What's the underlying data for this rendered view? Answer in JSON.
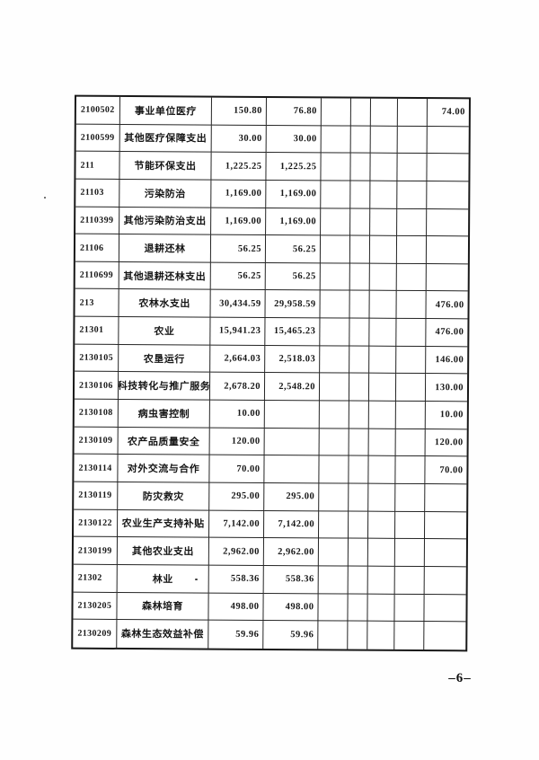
{
  "document": {
    "page_number": "–6–"
  },
  "table": {
    "rows": [
      [
        "2100502",
        "事业单位医疗",
        "150.80",
        "76.80",
        "",
        "",
        "",
        "",
        "74.00"
      ],
      [
        "2100599",
        "其他医疗保障支出",
        "30.00",
        "30.00",
        "",
        "",
        "",
        "",
        ""
      ],
      [
        "211",
        "节能环保支出",
        "1,225.25",
        "1,225.25",
        "",
        "",
        "",
        "",
        ""
      ],
      [
        "21103",
        "污染防治",
        "1,169.00",
        "1,169.00",
        "",
        "",
        "",
        "",
        ""
      ],
      [
        "2110399",
        "其他污染防治支出",
        "1,169.00",
        "1,169.00",
        "",
        "",
        "",
        "",
        ""
      ],
      [
        "21106",
        "退耕还林",
        "56.25",
        "56.25",
        "",
        "",
        "",
        "",
        ""
      ],
      [
        "2110699",
        "其他退耕还林支出",
        "56.25",
        "56.25",
        "",
        "",
        "",
        "",
        ""
      ],
      [
        "213",
        "农林水支出",
        "30,434.59",
        "29,958.59",
        "",
        "",
        "",
        "",
        "476.00"
      ],
      [
        "21301",
        "农业",
        "15,941.23",
        "15,465.23",
        "",
        "",
        "",
        "",
        "476.00"
      ],
      [
        "2130105",
        "农垦运行",
        "2,664.03",
        "2,518.03",
        "",
        "",
        "",
        "",
        "146.00"
      ],
      [
        "2130106",
        "科技转化与推广服务",
        "2,678.20",
        "2,548.20",
        "",
        "",
        "",
        "",
        "130.00"
      ],
      [
        "2130108",
        "病虫害控制",
        "10.00",
        "",
        "",
        "",
        "",
        "",
        "10.00"
      ],
      [
        "2130109",
        "农产品质量安全",
        "120.00",
        "",
        "",
        "",
        "",
        "",
        "120.00"
      ],
      [
        "2130114",
        "对外交流与合作",
        "70.00",
        "",
        "",
        "",
        "",
        "",
        "70.00"
      ],
      [
        "2130119",
        "防灾救灾",
        "295.00",
        "295.00",
        "",
        "",
        "",
        "",
        ""
      ],
      [
        "2130122",
        "农业生产支持补贴",
        "7,142.00",
        "7,142.00",
        "",
        "",
        "",
        "",
        ""
      ],
      [
        "2130199",
        "其他农业支出",
        "2,962.00",
        "2,962.00",
        "",
        "",
        "",
        "",
        ""
      ],
      [
        "21302",
        "林业",
        "558.36",
        "558.36",
        "",
        "",
        "",
        "",
        ""
      ],
      [
        "2130205",
        "森林培育",
        "498.00",
        "498.00",
        "",
        "",
        "",
        "",
        ""
      ],
      [
        "2130209",
        "森林生态效益补偿",
        "59.96",
        "59.96",
        "",
        "",
        "",
        "",
        ""
      ]
    ]
  }
}
